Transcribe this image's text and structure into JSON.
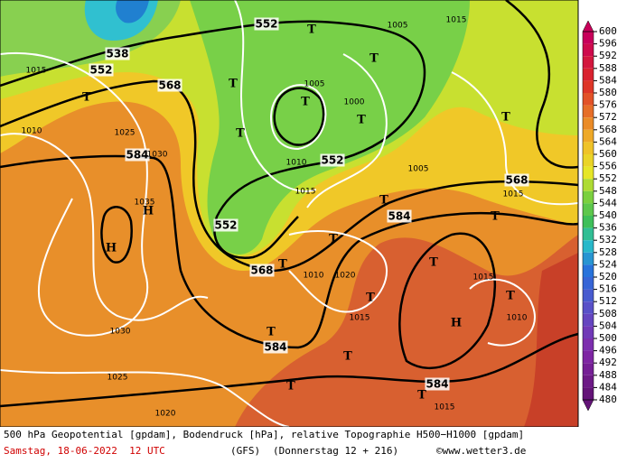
{
  "map": {
    "geopotential_labels": [
      "552",
      "538",
      "552",
      "568",
      "584",
      "552",
      "552",
      "568",
      "584",
      "568",
      "584",
      "584"
    ],
    "isobar_labels": [
      "1015",
      "1010",
      "1025",
      "1030",
      "1035",
      "1030",
      "1025",
      "1020",
      "1005",
      "1000",
      "1010",
      "1015",
      "1010",
      "1020",
      "1015",
      "1015",
      "1010",
      "1015",
      "1005",
      "1015",
      "1005",
      "1015"
    ],
    "high_centers": [
      "H",
      "H",
      "H"
    ],
    "low_centers": [
      "T",
      "T",
      "T",
      "T",
      "T",
      "T",
      "T",
      "T",
      "T",
      "T",
      "T",
      "T",
      "T",
      "T",
      "T",
      "T",
      "T",
      "T",
      "T"
    ]
  },
  "colorbar": {
    "ticks": [
      600,
      596,
      592,
      588,
      584,
      580,
      576,
      572,
      568,
      564,
      560,
      556,
      552,
      548,
      544,
      540,
      536,
      532,
      528,
      524,
      520,
      516,
      512,
      508,
      504,
      500,
      496,
      492,
      488,
      484,
      480
    ]
  },
  "footer": {
    "description": "500 hPa Geopotential [gpdam], Bodendruck [hPa], relative Topographie H500−H1000 [gpdam]",
    "date": "Samstag, 18-06-2022  12 UTC",
    "model": "(GFS)",
    "run": "(Donnerstag 12 + 216)",
    "source": "©www.wetter3.de"
  }
}
